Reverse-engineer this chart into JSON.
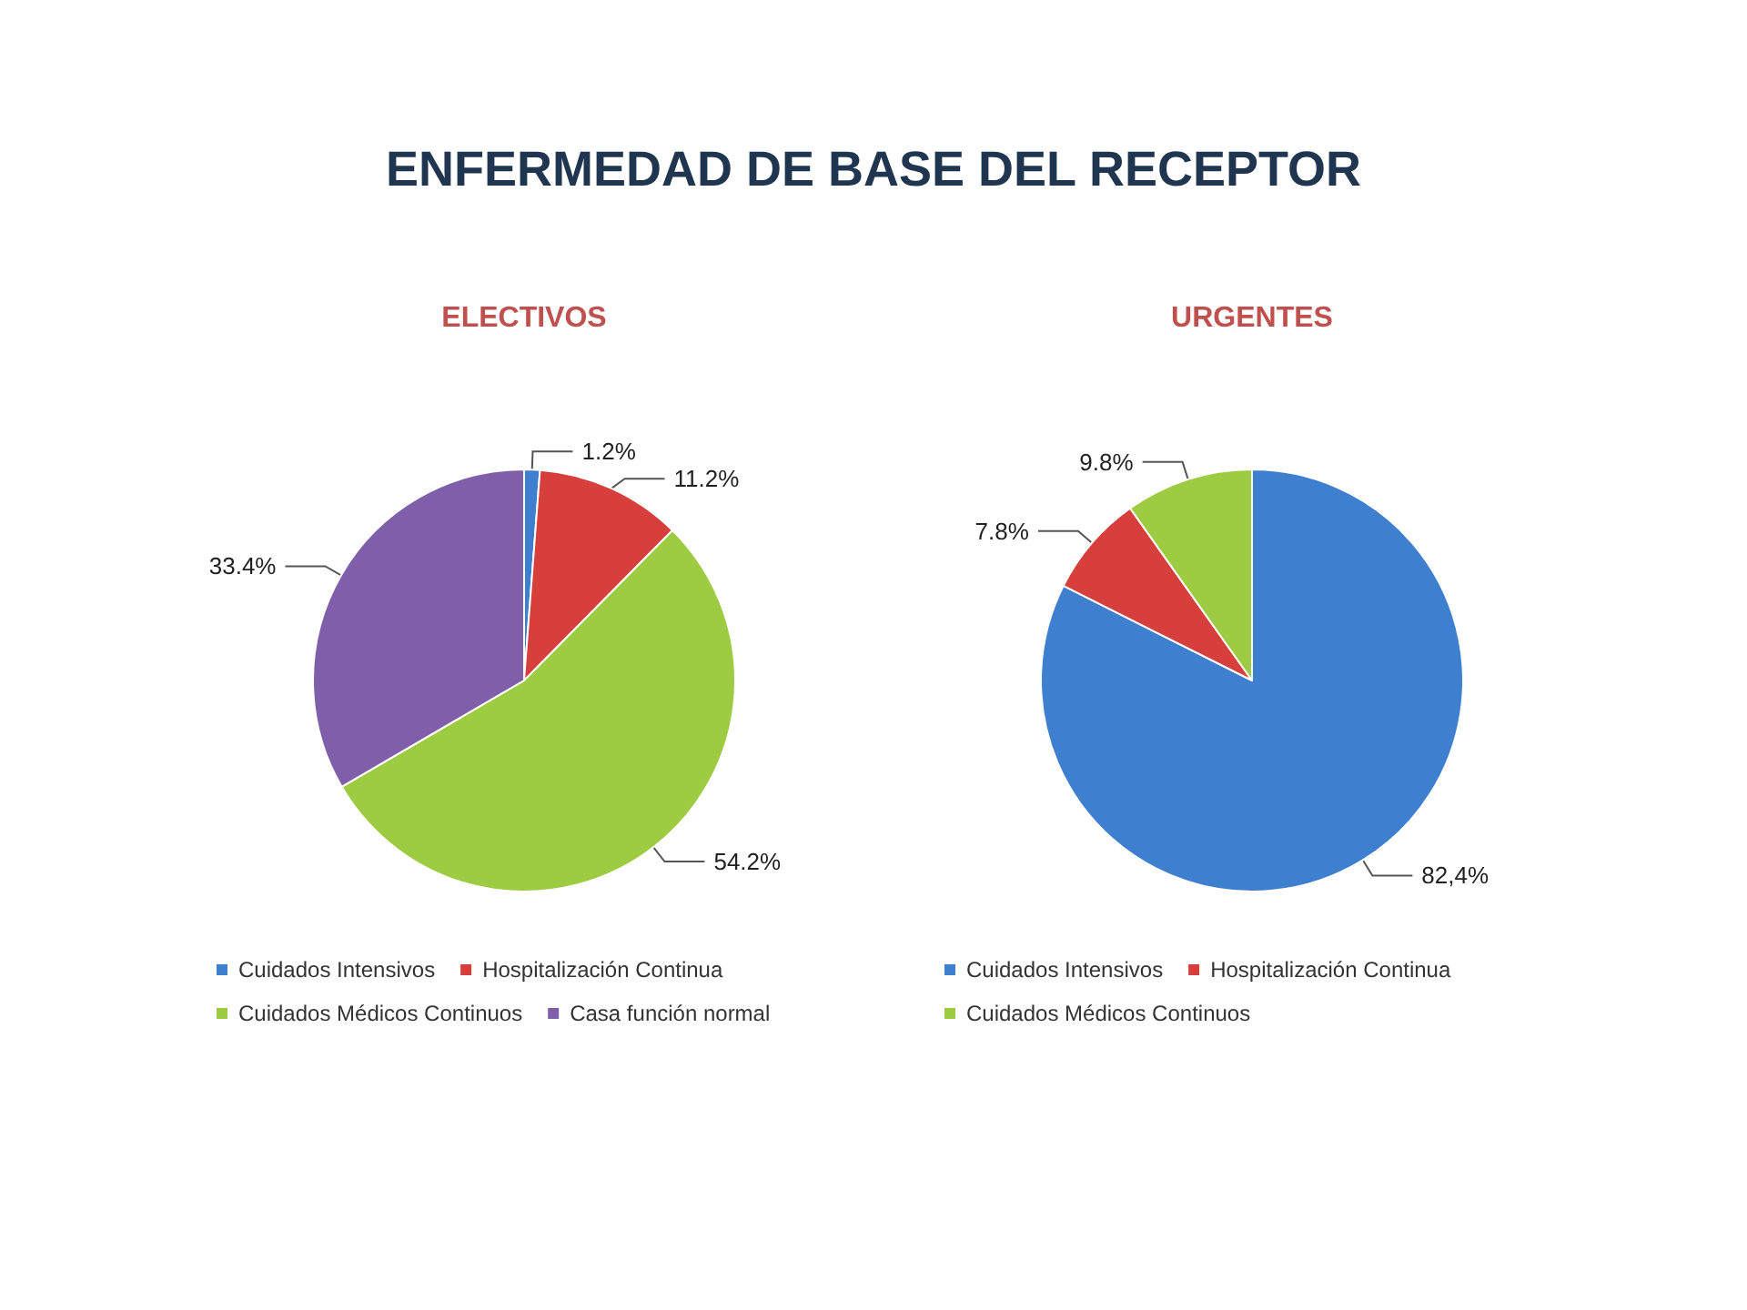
{
  "chart_data": [
    {
      "type": "other",
      "title": "ENFERMEDAD DE BASE DEL RECEPTOR"
    },
    {
      "type": "pie",
      "title": "ELECTIVOS",
      "categories": [
        "Cuidados Intensivos",
        "Hospitalización Continua",
        "Cuidados Médicos Continuos",
        "Casa función normal"
      ],
      "values": [
        1.2,
        11.2,
        54.2,
        33.4
      ],
      "colors": [
        "#3f7fd0",
        "#d63f3b",
        "#9dcb42",
        "#7f5fa9"
      ],
      "value_labels": [
        "1.2%",
        "11.2%",
        "54.2%",
        "33.4%"
      ],
      "legend": "bottom"
    },
    {
      "type": "pie",
      "title": "URGENTES",
      "categories": [
        "Cuidados Intensivos",
        "Hospitalización Continua",
        "Cuidados Médicos Continuos"
      ],
      "values": [
        82.4,
        7.8,
        9.8
      ],
      "colors": [
        "#3f7fd0",
        "#d63f3b",
        "#9dcb42"
      ],
      "value_labels": [
        "82,4%",
        "7.8%",
        "9.8%"
      ],
      "legend": "bottom"
    }
  ]
}
